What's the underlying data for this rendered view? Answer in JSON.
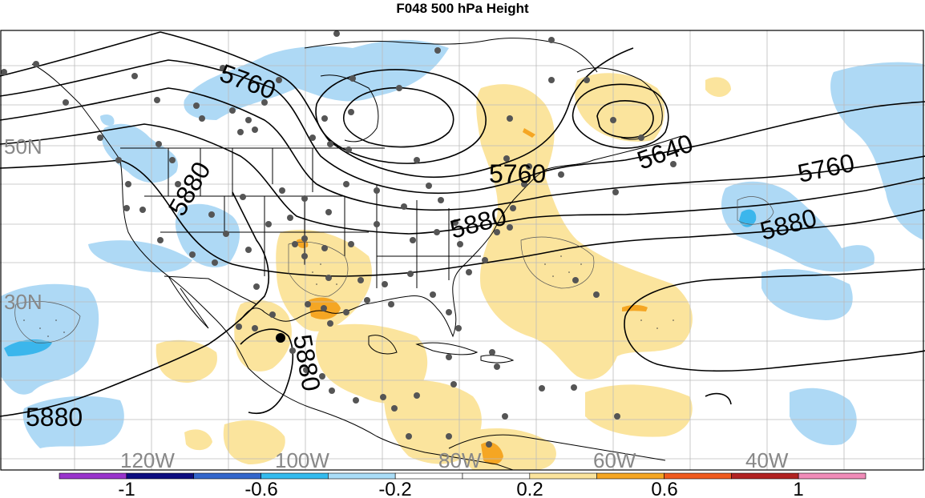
{
  "title": "F048 500 hPa Height",
  "lat_labels": [
    "50N",
    "30N"
  ],
  "lon_labels": [
    "120W",
    "100W",
    "80W",
    "60W",
    "40W"
  ],
  "contour_labels": [
    "5760",
    "5640",
    "5880",
    "5760",
    "5880",
    "5880",
    "5760",
    "5880",
    "5880"
  ],
  "colorbar": {
    "colors": [
      "#9933cc",
      "#0d0d80",
      "#3366cc",
      "#33bbee",
      "#aaddf7",
      "#ffffff",
      "#ffffff",
      "#fbe49d",
      "#f5a623",
      "#f05a1e",
      "#b22222",
      "#f08cb8"
    ],
    "tick_labels": [
      "-1",
      "-0.6",
      "-0.2",
      "0.2",
      "0.6",
      "1"
    ]
  },
  "colors": {
    "positive_light": "#fbe49d",
    "positive_mid": "#f5a623",
    "negative_light": "#aed9f5",
    "negative_mid": "#3bb6ec",
    "contour": "#000000",
    "grid": "#bbbbbb",
    "station": "#555555",
    "axis_label": "#888888"
  }
}
